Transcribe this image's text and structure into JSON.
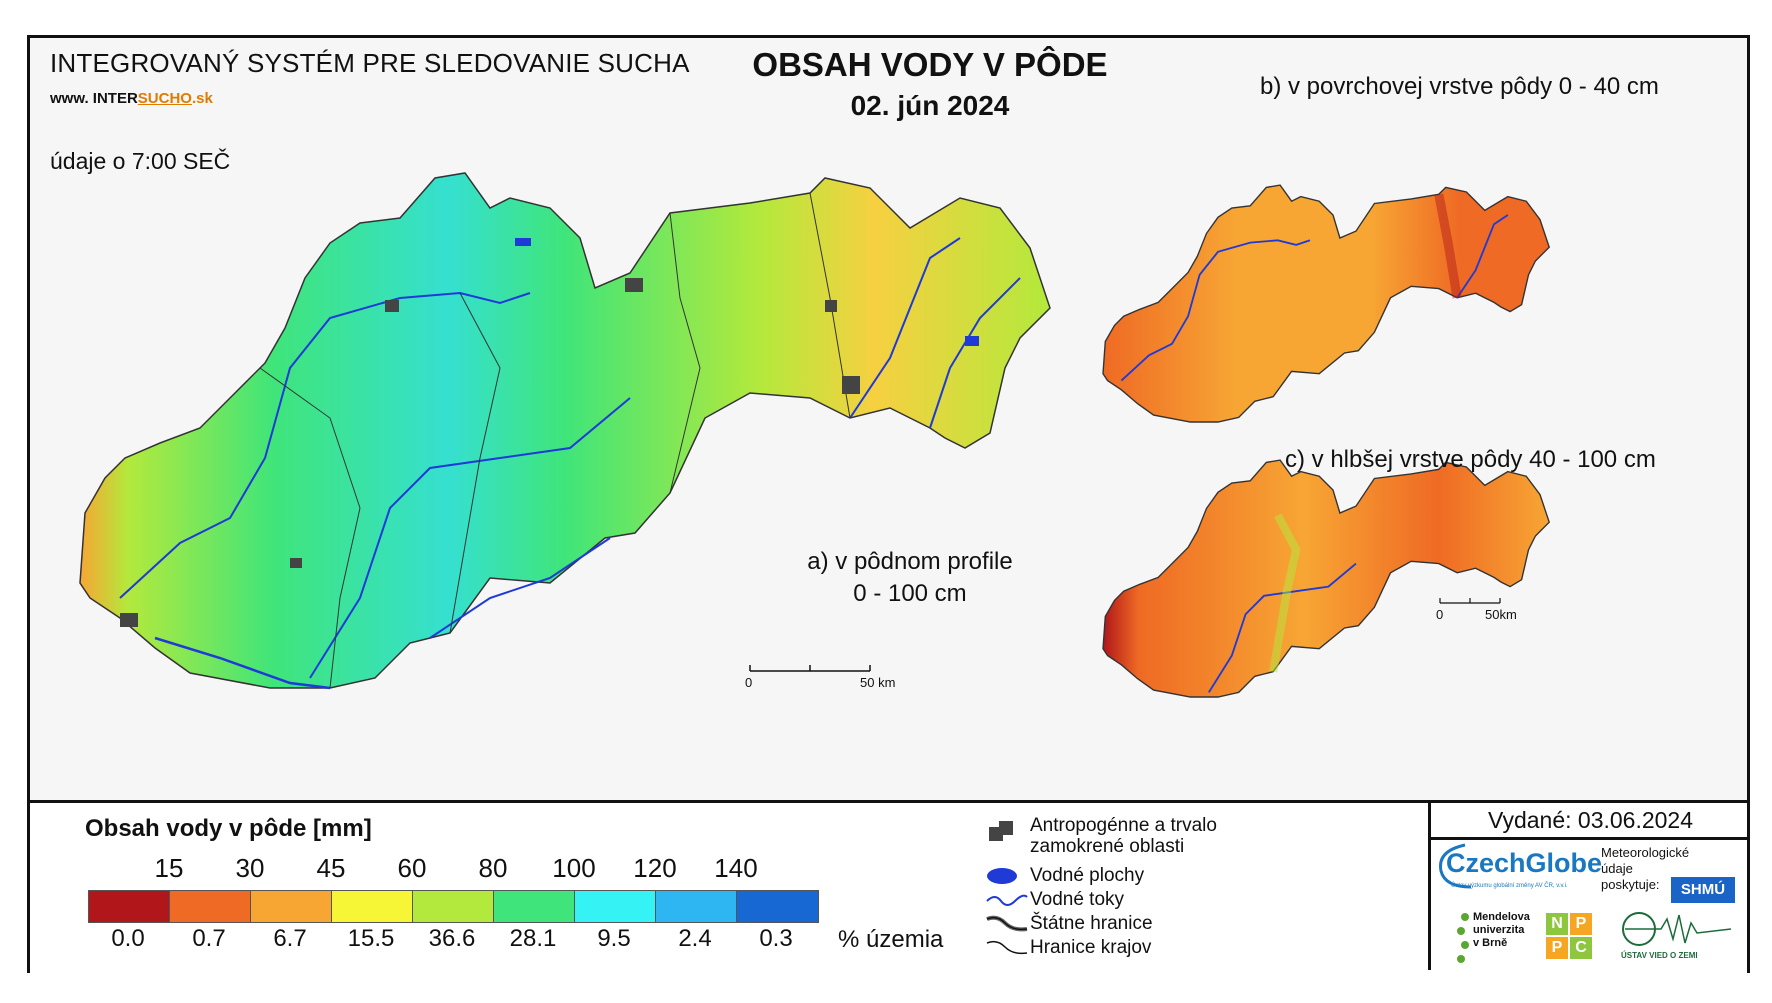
{
  "header": {
    "system_title": "INTEGROVANÝ SYSTÉM PRE SLEDOVANIE SUCHA",
    "website_prefix": "www.",
    "website_brand_a": "INTER",
    "website_brand_b": "SUCHO",
    "website_suffix": ".sk",
    "data_time": "údaje o 7:00 SEČ",
    "main_title": "OBSAH VODY V PÔDE",
    "date": "02. jún 2024"
  },
  "maps": {
    "a_caption_line1": "a) v pôdnom profile",
    "a_caption_line2": "0 - 100 cm",
    "b_caption": "b) v povrchovej vrstve pôdy 0 - 40 cm",
    "c_caption": "c) v hlbšej vrstve pôdy 40 - 100 cm",
    "scale_main_start": "0",
    "scale_main_end": "50 km",
    "scale_small_start": "0",
    "scale_small_end": "50km"
  },
  "legend": {
    "title": "Obsah vody v pôde  [mm]",
    "thresholds": [
      "15",
      "30",
      "45",
      "60",
      "80",
      "100",
      "120",
      "140"
    ],
    "classes": [
      {
        "color": "#b0161a",
        "percent": "0.0"
      },
      {
        "color": "#ef6a24",
        "percent": "0.7"
      },
      {
        "color": "#f7a634",
        "percent": "6.7"
      },
      {
        "color": "#f6f536",
        "percent": "15.5"
      },
      {
        "color": "#b3e93c",
        "percent": "36.6"
      },
      {
        "color": "#3fe57a",
        "percent": "28.1"
      },
      {
        "color": "#35f2f4",
        "percent": "9.5"
      },
      {
        "color": "#2eb6f2",
        "percent": "2.4"
      },
      {
        "color": "#1768d2",
        "percent": "0.3"
      }
    ],
    "percent_unit": "% územia"
  },
  "map_legend": {
    "anthropogenic_line1": "Antropogénne a trvalo",
    "anthropogenic_line2": "zamokrené oblasti",
    "water_bodies": "Vodné plochy",
    "streams": "Vodné toky",
    "state_border": "Štátne hranice",
    "region_border": "Hranice krajov"
  },
  "credits": {
    "issued": "Vydané: 03.06.2024",
    "czechglobe": "CzechGlobe",
    "czechglobe_sub": "Ústav výzkumu globální změny AV ČR, v.v.i.",
    "meteo_line1": "Meteorologické",
    "meteo_line2": "údaje",
    "meteo_line3": "poskytuje:",
    "shmu": "SHMÚ",
    "mendel_line1": "Mendelova",
    "mendel_line2": "univerzita",
    "mendel_line3": "v Brně",
    "nppc": [
      "N",
      "P",
      "P",
      "C"
    ],
    "uvz": "ÚSTAV VIED O ZEMI"
  }
}
